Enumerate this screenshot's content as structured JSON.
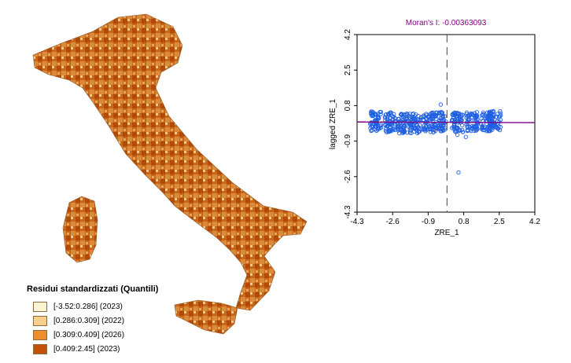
{
  "legend": {
    "title": "Residui standardizzati (Quantili)",
    "classes": [
      {
        "label": "[-3.52:0.286] (2023)",
        "color": "#fff4d2"
      },
      {
        "label": "[0.286:0.309] (2022)",
        "color": "#f8d08c"
      },
      {
        "label": "[0.309:0.409] (2026)",
        "color": "#ec8e2e"
      },
      {
        "label": "[0.409:2.45] (2023)",
        "color": "#c2540a"
      }
    ]
  },
  "moran": {
    "title": "Moran's I: -0.00363093",
    "x_label": "ZRE_1",
    "y_label": "lagged ZRE_1"
  },
  "chart_data": {
    "type": "scatter",
    "title": "Moran's I: -0.00363093",
    "xlabel": "ZRE_1",
    "ylabel": "lagged ZRE_1",
    "xlim": [
      -4.3,
      4.2
    ],
    "ylim": [
      -4.3,
      4.2
    ],
    "x_ticks": [
      "-4.3",
      "-2.6",
      "-0.9",
      "0.8",
      "2.5",
      "4.2"
    ],
    "y_ticks": [
      "-4.3",
      "-2.6",
      "-0.9",
      "0.8",
      "2.5",
      "4.2"
    ],
    "regression_slope": -0.00363093,
    "point_color": "#1f5fe0",
    "regression_color": "#800080",
    "clusters": [
      {
        "x": -3.4,
        "y": 0.05
      },
      {
        "x": -2.7,
        "y": 0.0
      },
      {
        "x": -2.1,
        "y": -0.05
      },
      {
        "x": -1.5,
        "y": -0.05
      },
      {
        "x": -0.9,
        "y": 0.0
      },
      {
        "x": -0.35,
        "y": 0.05
      },
      {
        "x": 0.5,
        "y": 0.0
      },
      {
        "x": 1.2,
        "y": 0.05
      },
      {
        "x": 1.9,
        "y": 0.05
      },
      {
        "x": 2.3,
        "y": 0.1
      }
    ],
    "points": [
      {
        "x": -0.05,
        "y": 0.03
      },
      {
        "x": 0.5,
        "y": -0.6
      },
      {
        "x": 0.9,
        "y": -0.7
      },
      {
        "x": 1.0,
        "y": -0.4
      },
      {
        "x": -0.3,
        "y": 0.85
      },
      {
        "x": 0.55,
        "y": -2.4
      }
    ]
  }
}
